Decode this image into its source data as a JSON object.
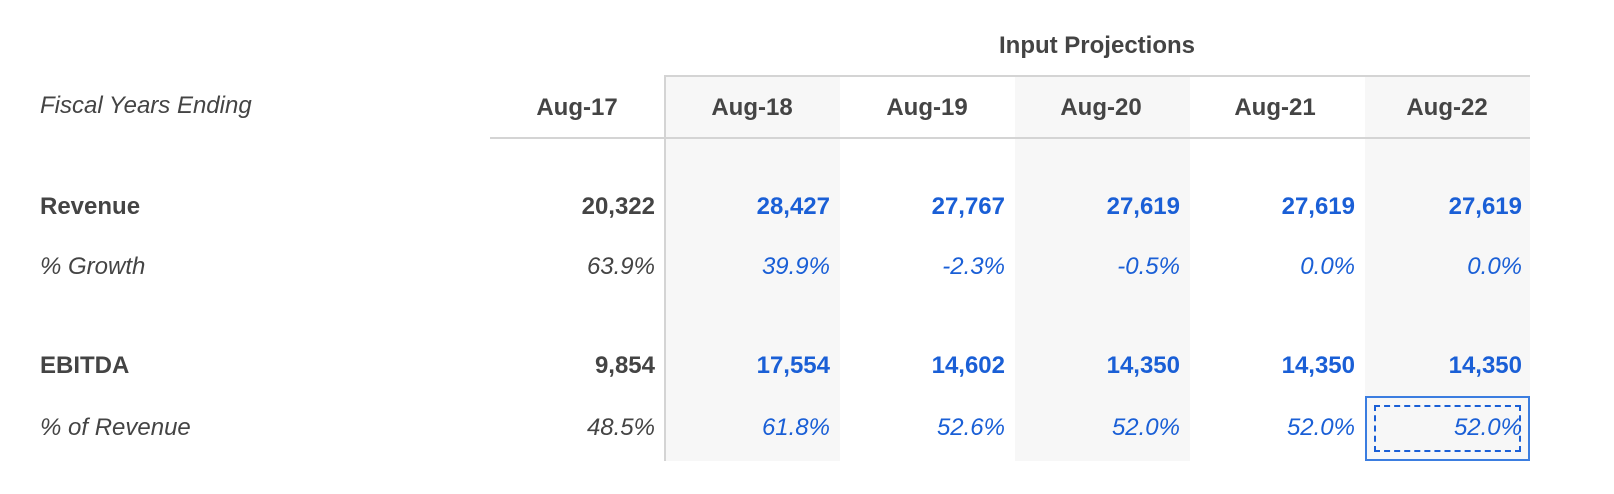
{
  "header": {
    "group_title": "Input Projections",
    "row_label": "Fiscal Years Ending",
    "periods": [
      "Aug-17",
      "Aug-18",
      "Aug-19",
      "Aug-20",
      "Aug-21",
      "Aug-22"
    ]
  },
  "rows": [
    {
      "label": "Revenue",
      "values": [
        "20,322",
        "28,427",
        "27,767",
        "27,619",
        "27,619",
        "27,619"
      ]
    },
    {
      "label": "% Growth",
      "values": [
        "63.9%",
        "39.9%",
        "-2.3%",
        "-0.5%",
        "0.0%",
        "0.0%"
      ]
    },
    {
      "label": "EBITDA",
      "values": [
        "9,854",
        "17,554",
        "14,602",
        "14,350",
        "14,350",
        "14,350"
      ]
    },
    {
      "label": "% of Revenue",
      "values": [
        "48.5%",
        "61.8%",
        "52.6%",
        "52.0%",
        "52.0%",
        "52.0%"
      ]
    }
  ]
}
